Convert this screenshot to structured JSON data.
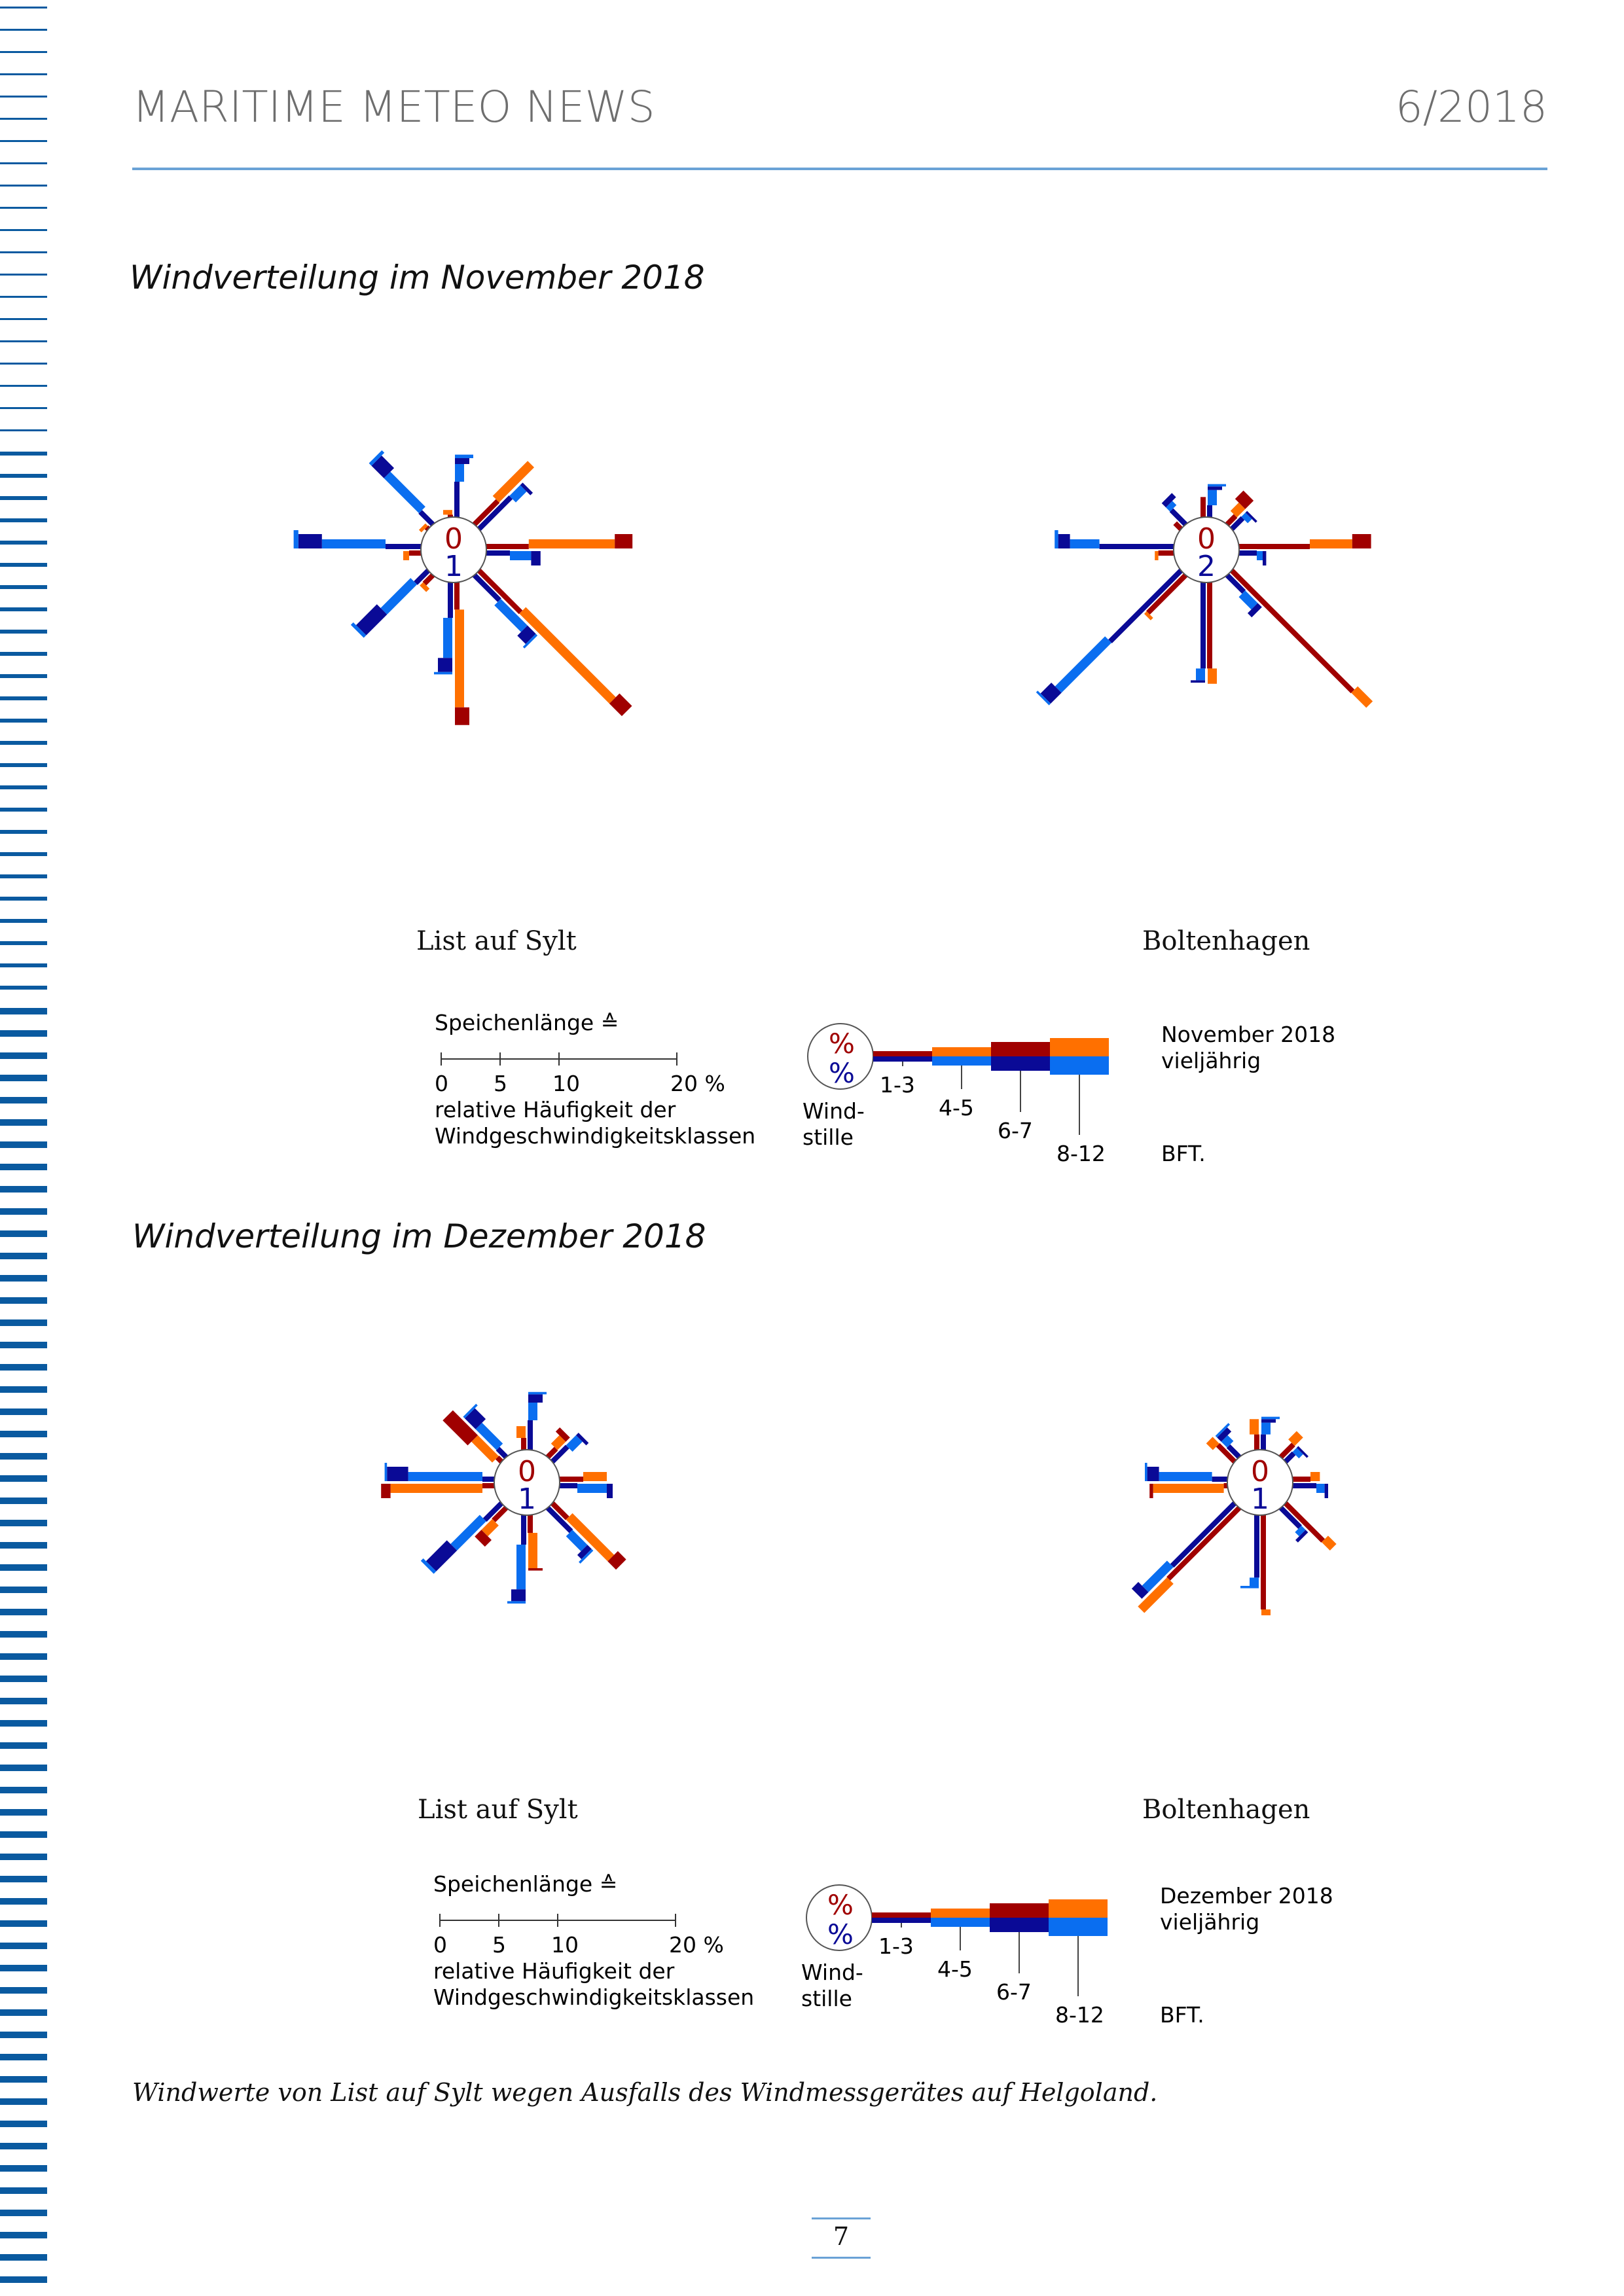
{
  "header": {
    "title": "MARITIME METEO NEWS",
    "issue": "6/2018"
  },
  "colors": {
    "current_dark": "#a00000",
    "current_light": "#ff7000",
    "longterm_dark": "#0a0a96",
    "longterm_light": "#0a6ef0",
    "accent": "#6aa2d6",
    "stripe": "#0a5aa0"
  },
  "sections": [
    {
      "title": "Windverteilung im November 2018",
      "roses": [
        {
          "station": "List auf Sylt",
          "calm_current": "0",
          "calm_longterm": "1",
          "directions": [
            {
              "dir": "N",
              "current": [
                0.2,
                0.4,
                0,
                0
              ],
              "longterm": [
                3.0,
                1.5,
                0.5,
                0.3
              ]
            },
            {
              "dir": "NE",
              "current": [
                2.8,
                4.2,
                0,
                0
              ],
              "longterm": [
                3.8,
                1.3,
                0.3,
                0
              ]
            },
            {
              "dir": "E",
              "current": [
                3.6,
                7.3,
                1.5,
                0
              ],
              "longterm": [
                2.0,
                1.8,
                0.8,
                0
              ]
            },
            {
              "dir": "SE",
              "current": [
                5.0,
                10.8,
                1.5,
                0
              ],
              "longterm": [
                3.0,
                3.2,
                1.0,
                0.2
              ]
            },
            {
              "dir": "S",
              "current": [
                2.3,
                8.3,
                1.5,
                0
              ],
              "longterm": [
                3.0,
                3.4,
                1.2,
                0.2
              ]
            },
            {
              "dir": "SW",
              "current": [
                1.0,
                0.4,
                0,
                0
              ],
              "longterm": [
                1.5,
                3.6,
                2.5,
                0.3
              ]
            },
            {
              "dir": "W",
              "current": [
                1.0,
                0.5,
                0,
                0
              ],
              "longterm": [
                3.0,
                5.4,
                2.0,
                0.4
              ]
            },
            {
              "dir": "NW",
              "current": [
                0.2,
                0.3,
                0,
                0
              ],
              "longterm": [
                1.5,
                4.2,
                1.5,
                0.3
              ]
            }
          ]
        },
        {
          "station": "Boltenhagen",
          "calm_current": "0",
          "calm_longterm": "2",
          "directions": [
            {
              "dir": "N",
              "current": [
                1.7,
                0,
                0,
                0
              ],
              "longterm": [
                1.0,
                1.3,
                0.3,
                0.2
              ]
            },
            {
              "dir": "NE",
              "current": [
                1.0,
                1.0,
                1.0,
                0
              ],
              "longterm": [
                1.3,
                0.5,
                0.2,
                0
              ]
            },
            {
              "dir": "E",
              "current": [
                6.0,
                3.6,
                1.6,
                0
              ],
              "longterm": [
                1.5,
                0.5,
                0.3,
                0
              ]
            },
            {
              "dir": "SE",
              "current": [
                14.5,
                1.8,
                0,
                0
              ],
              "longterm": [
                2.0,
                1.5,
                0.5,
                0
              ]
            },
            {
              "dir": "S",
              "current": [
                7.3,
                1.3,
                0,
                0
              ],
              "longterm": [
                7.3,
                1.0,
                0.2,
                0
              ]
            },
            {
              "dir": "SW",
              "current": [
                4.5,
                0.3,
                0,
                0
              ],
              "longterm": [
                8.5,
                6.0,
                1.3,
                0.2
              ]
            },
            {
              "dir": "W",
              "current": [
                1.3,
                0.3,
                0,
                0
              ],
              "longterm": [
                6.3,
                2.5,
                1.0,
                0.3
              ]
            },
            {
              "dir": "NW",
              "current": [
                0.7,
                0,
                0,
                0
              ],
              "longterm": [
                1.7,
                0.5,
                0.5,
                0
              ]
            }
          ]
        }
      ],
      "legend": {
        "scale_title": "Speichenlänge ≙",
        "ticks": [
          "0",
          "5",
          "10",
          "20 %"
        ],
        "desc1": "relative Häufigkeit der",
        "desc2": "Windgeschwindigkeitsklassen",
        "pct_top": "%",
        "pct_bottom": "%",
        "calm1": "Wind-",
        "calm2": "stille",
        "classes": [
          "1-3",
          "4-5",
          "6-7",
          "8-12"
        ],
        "bft": "BFT.",
        "label_current": "November 2018",
        "label_longterm": "vieljährig"
      }
    },
    {
      "title": "Windverteilung im Dezember 2018",
      "roses": [
        {
          "station": "List auf Sylt",
          "calm_current": "0",
          "calm_longterm": "1",
          "directions": [
            {
              "dir": "N",
              "current": [
                1.0,
                1.0,
                0,
                0
              ],
              "longterm": [
                2.5,
                1.5,
                0.7,
                0.2
              ]
            },
            {
              "dir": "NE",
              "current": [
                1.0,
                1.0,
                0.5,
                0
              ],
              "longterm": [
                1.8,
                1.2,
                0.3,
                0
              ]
            },
            {
              "dir": "E",
              "current": [
                2.0,
                2.0,
                0,
                0
              ],
              "longterm": [
                1.5,
                2.5,
                0.5,
                0
              ]
            },
            {
              "dir": "SE",
              "current": [
                1.8,
                5.0,
                1.0,
                0
              ],
              "longterm": [
                2.8,
                1.8,
                0.5,
                0.2
              ]
            },
            {
              "dir": "S",
              "current": [
                1.5,
                3.0,
                0.2,
                0
              ],
              "longterm": [
                2.5,
                3.8,
                1.0,
                0.2
              ]
            },
            {
              "dir": "SW",
              "current": [
                1.5,
                1.3,
                0.8,
                0
              ],
              "longterm": [
                2.0,
                3.5,
                2.5,
                0.3
              ]
            },
            {
              "dir": "W",
              "current": [
                1.0,
                7.8,
                0.8,
                0
              ],
              "longterm": [
                1.0,
                6.3,
                1.8,
                0.2
              ]
            },
            {
              "dir": "NW",
              "current": [
                0.5,
                2.5,
                3.0,
                0
              ],
              "longterm": [
                1.0,
                2.5,
                1.3,
                0.2
              ]
            }
          ]
        },
        {
          "station": "Boltenhagen",
          "calm_current": "0",
          "calm_longterm": "1",
          "directions": [
            {
              "dir": "N",
              "current": [
                1.3,
                1.3,
                0,
                0
              ],
              "longterm": [
                1.3,
                1.0,
                0.3,
                0.2
              ]
            },
            {
              "dir": "NE",
              "current": [
                1.5,
                1.0,
                0,
                0
              ],
              "longterm": [
                1.0,
                0.5,
                0.2,
                0
              ]
            },
            {
              "dir": "E",
              "current": [
                1.5,
                0.8,
                0,
                0
              ],
              "longterm": [
                2.0,
                0.7,
                0.3,
                0
              ]
            },
            {
              "dir": "SE",
              "current": [
                4.5,
                1.0,
                0,
                0
              ],
              "longterm": [
                2.3,
                0.5,
                0.3,
                0
              ]
            },
            {
              "dir": "S",
              "current": [
                8.0,
                0.5,
                0,
                0
              ],
              "longterm": [
                5.3,
                0.7,
                0,
                0.2
              ]
            },
            {
              "dir": "SW",
              "current": [
                8.5,
                3.5,
                0,
                0
              ],
              "longterm": [
                7.5,
                3.0,
                0.8,
                0
              ]
            },
            {
              "dir": "W",
              "current": [
                0.3,
                6.0,
                0.3,
                0
              ],
              "longterm": [
                1.3,
                4.5,
                1.0,
                0.2
              ]
            },
            {
              "dir": "NW",
              "current": [
                2.0,
                0.8,
                0,
                0
              ],
              "longterm": [
                1.3,
                0.7,
                0.5,
                0.2
              ]
            }
          ]
        }
      ],
      "legend": {
        "scale_title": "Speichenlänge ≙",
        "ticks": [
          "0",
          "5",
          "10",
          "20 %"
        ],
        "desc1": "relative Häufigkeit der",
        "desc2": "Windgeschwindigkeitsklassen",
        "pct_top": "%",
        "pct_bottom": "%",
        "calm1": "Wind-",
        "calm2": "stille",
        "classes": [
          "1-3",
          "4-5",
          "6-7",
          "8-12"
        ],
        "bft": "BFT.",
        "label_current": "Dezember 2018",
        "label_longterm": "vieljährig"
      }
    }
  ],
  "footnote": "Windwerte von List auf Sylt wegen Ausfalls des Windmessgerätes auf Helgoland.",
  "page_number": "7"
}
